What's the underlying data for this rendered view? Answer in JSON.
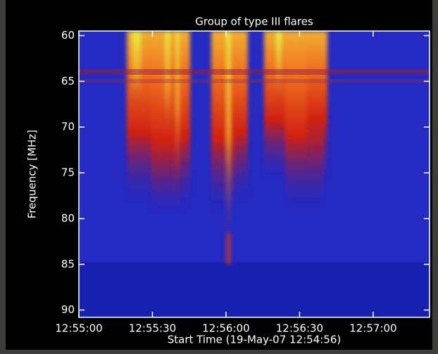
{
  "chart_data": {
    "type": "spectrogram",
    "title": "Group of type III flares",
    "x_label": "Start Time (19-May-07 12:54:56)",
    "y_label": "Frequency [MHz]",
    "xlim": [
      "12:55:00",
      "12:57:23"
    ],
    "xticks": [
      "12:55:00",
      "12:55:30",
      "12:56:00",
      "12:56:30",
      "12:57:00"
    ],
    "ylim": [
      90.8,
      59.5
    ],
    "yticks": [
      60,
      65,
      70,
      75,
      80,
      85,
      90
    ]
  }
}
